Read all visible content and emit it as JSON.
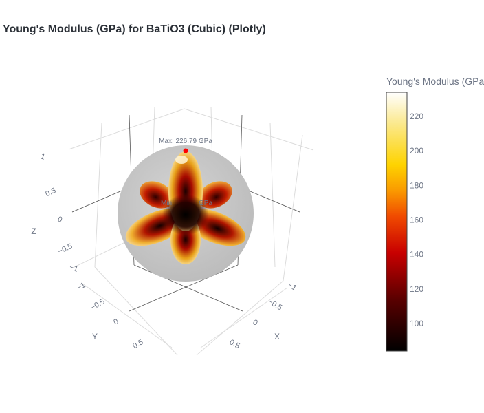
{
  "title": "Young's Modulus (GPa) for BaTiO3 (Cubic) (Plotly)",
  "chart_data": {
    "type": "surface3d",
    "title": "Young's Modulus (GPa) for BaTiO3 (Cubic) (Plotly)",
    "colorscale": "hot",
    "colorbar": {
      "title": "Young's Modulus (GPa",
      "range": [
        84,
        234
      ],
      "ticks": [
        220,
        200,
        180,
        160,
        140,
        120,
        100
      ]
    },
    "axes": {
      "x": {
        "label": "X",
        "ticks": [
          "−1",
          "−0.5",
          "0",
          "0.5"
        ]
      },
      "y": {
        "label": "Y",
        "ticks": [
          "−1",
          "−0.5",
          "0",
          "0.5"
        ]
      },
      "z": {
        "label": "Z",
        "ticks": [
          "−1",
          "−0.5",
          "0",
          "0.5",
          "1"
        ]
      }
    },
    "max_annotation": "Max: 226.79 GPa",
    "min_annotation": "Min",
    "min_annotation_suffix": "GPa",
    "max_value_gpa": 226.79
  }
}
